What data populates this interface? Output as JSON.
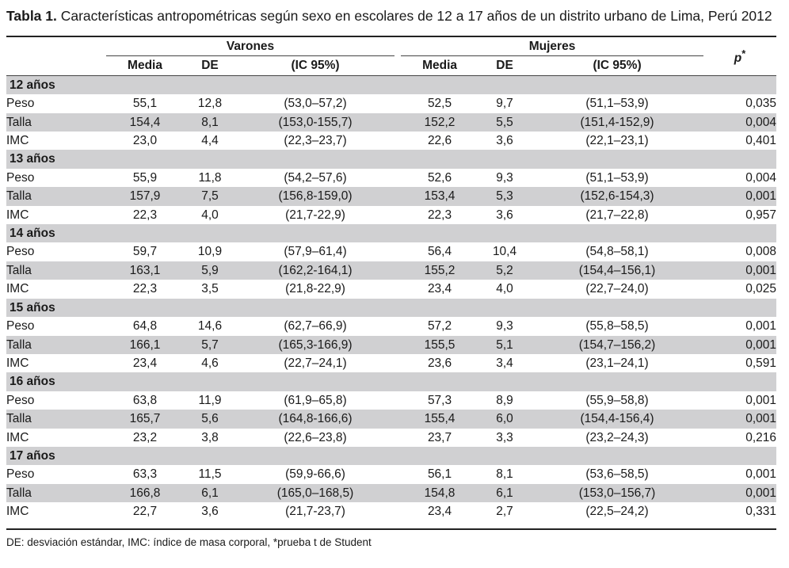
{
  "caption": {
    "label": "Tabla 1.",
    "text": " Características antropométricas según sexo en escolares de 12 a 17 años de un distrito urbano de Lima, Perú 2012"
  },
  "header": {
    "group_varones": "Varones",
    "group_mujeres": "Mujeres",
    "p_label": "p",
    "p_suffix": "*",
    "media": "Media",
    "de": "DE",
    "ic": "(IC 95%)"
  },
  "groups": [
    {
      "age": "12 años",
      "rows": [
        {
          "var": "Peso",
          "v_media": "55,1",
          "v_de": "12,8",
          "v_ic": "(53,0–57,2)",
          "m_media": "52,5",
          "m_de": "9,7",
          "m_ic": "(51,1–53,9)",
          "p": "0,035"
        },
        {
          "var": "Talla",
          "v_media": "154,4",
          "v_de": "8,1",
          "v_ic": "(153,0-155,7)",
          "m_media": "152,2",
          "m_de": "5,5",
          "m_ic": "(151,4-152,9)",
          "p": "0,004"
        },
        {
          "var": "IMC",
          "v_media": "23,0",
          "v_de": "4,4",
          "v_ic": "(22,3–23,7)",
          "m_media": "22,6",
          "m_de": "3,6",
          "m_ic": "(22,1–23,1)",
          "p": "0,401"
        }
      ]
    },
    {
      "age": "13 años",
      "rows": [
        {
          "var": "Peso",
          "v_media": "55,9",
          "v_de": "11,8",
          "v_ic": "(54,2–57,6)",
          "m_media": "52,6",
          "m_de": "9,3",
          "m_ic": "(51,1–53,9)",
          "p": "0,004"
        },
        {
          "var": "Talla",
          "v_media": "157,9",
          "v_de": "7,5",
          "v_ic": "(156,8-159,0)",
          "m_media": "153,4",
          "m_de": "5,3",
          "m_ic": "(152,6-154,3)",
          "p": "0,001"
        },
        {
          "var": "IMC",
          "v_media": "22,3",
          "v_de": "4,0",
          "v_ic": "(21,7-22,9)",
          "m_media": "22,3",
          "m_de": "3,6",
          "m_ic": "(21,7–22,8)",
          "p": "0,957"
        }
      ]
    },
    {
      "age": "14 años",
      "rows": [
        {
          "var": "Peso",
          "v_media": "59,7",
          "v_de": "10,9",
          "v_ic": "(57,9–61,4)",
          "m_media": "56,4",
          "m_de": "10,4",
          "m_ic": "(54,8–58,1)",
          "p": "0,008"
        },
        {
          "var": "Talla",
          "v_media": "163,1",
          "v_de": "5,9",
          "v_ic": "(162,2-164,1)",
          "m_media": "155,2",
          "m_de": "5,2",
          "m_ic": "(154,4–156,1)",
          "p": "0,001"
        },
        {
          "var": "IMC",
          "v_media": "22,3",
          "v_de": "3,5",
          "v_ic": "(21,8-22,9)",
          "m_media": "23,4",
          "m_de": "4,0",
          "m_ic": "(22,7–24,0)",
          "p": "0,025"
        }
      ]
    },
    {
      "age": "15 años",
      "rows": [
        {
          "var": "Peso",
          "v_media": "64,8",
          "v_de": "14,6",
          "v_ic": "(62,7–66,9)",
          "m_media": "57,2",
          "m_de": "9,3",
          "m_ic": "(55,8–58,5)",
          "p": "0,001"
        },
        {
          "var": "Talla",
          "v_media": "166,1",
          "v_de": "5,7",
          "v_ic": "(165,3-166,9)",
          "m_media": "155,5",
          "m_de": "5,1",
          "m_ic": "(154,7–156,2)",
          "p": "0,001"
        },
        {
          "var": "IMC",
          "v_media": "23,4",
          "v_de": "4,6",
          "v_ic": "(22,7–24,1)",
          "m_media": "23,6",
          "m_de": "3,4",
          "m_ic": "(23,1–24,1)",
          "p": "0,591"
        }
      ]
    },
    {
      "age": "16 años",
      "rows": [
        {
          "var": "Peso",
          "v_media": "63,8",
          "v_de": "11,9",
          "v_ic": "(61,9–65,8)",
          "m_media": "57,3",
          "m_de": "8,9",
          "m_ic": "(55,9–58,8)",
          "p": "0,001"
        },
        {
          "var": "Talla",
          "v_media": "165,7",
          "v_de": "5,6",
          "v_ic": "(164,8-166,6)",
          "m_media": "155,4",
          "m_de": "6,0",
          "m_ic": "(154,4-156,4)",
          "p": "0,001"
        },
        {
          "var": "IMC",
          "v_media": "23,2",
          "v_de": "3,8",
          "v_ic": "(22,6–23,8)",
          "m_media": "23,7",
          "m_de": "3,3",
          "m_ic": "(23,2–24,3)",
          "p": "0,216"
        }
      ]
    },
    {
      "age": "17 años",
      "rows": [
        {
          "var": "Peso",
          "v_media": "63,3",
          "v_de": "11,5",
          "v_ic": "(59,9-66,6)",
          "m_media": "56,1",
          "m_de": "8,1",
          "m_ic": "(53,6–58,5)",
          "p": "0,001"
        },
        {
          "var": "Talla",
          "v_media": "166,8",
          "v_de": "6,1",
          "v_ic": "(165,0–168,5)",
          "m_media": "154,8",
          "m_de": "6,1",
          "m_ic": "(153,0–156,7)",
          "p": "0,001"
        },
        {
          "var": "IMC",
          "v_media": "22,7",
          "v_de": "3,6",
          "v_ic": "(21,7-23,7)",
          "m_media": "23,4",
          "m_de": "2,7",
          "m_ic": "(22,5–24,2)",
          "p": "0,331"
        }
      ]
    }
  ],
  "footnote": "DE: desviación estándar, IMC: índice de masa corporal, *prueba t de Student"
}
